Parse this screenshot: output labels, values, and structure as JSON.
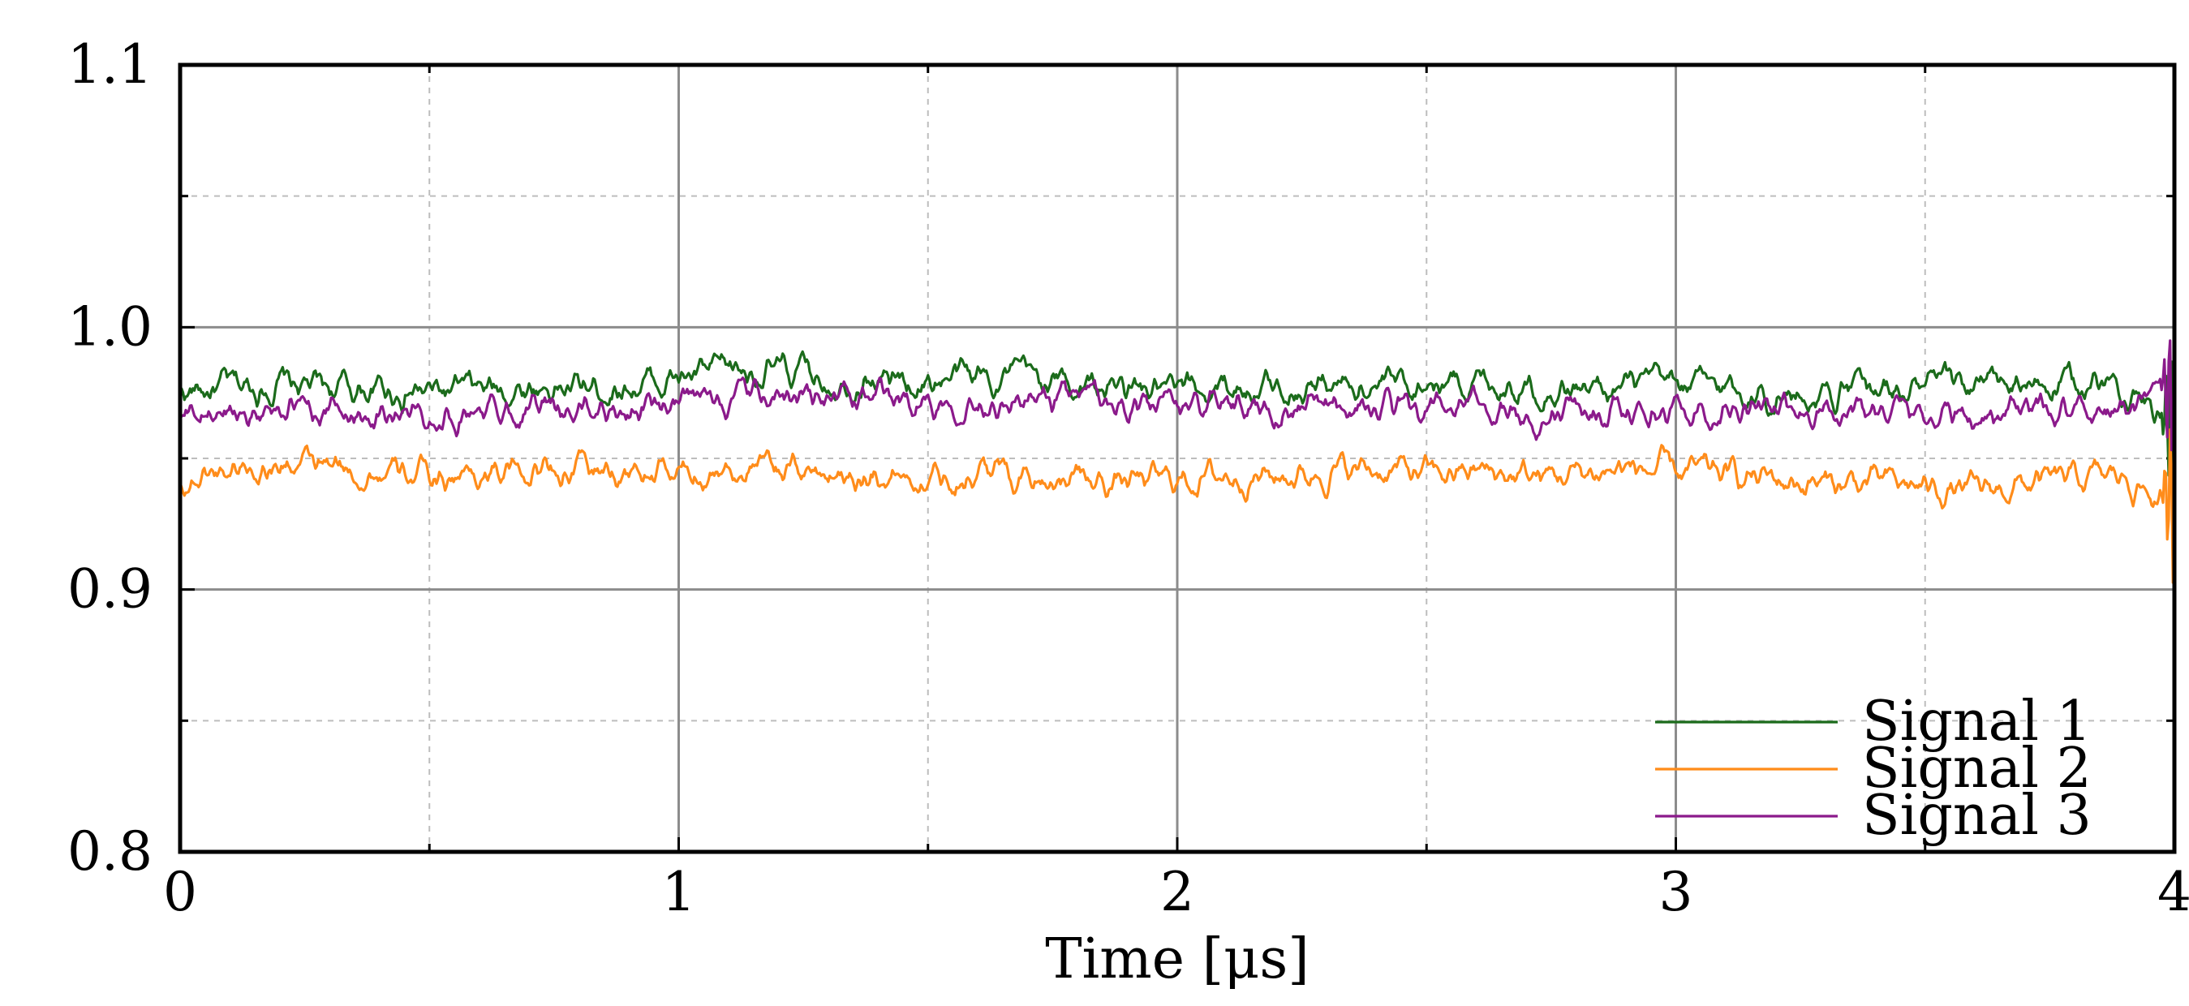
{
  "chart_data": {
    "type": "line",
    "title": "",
    "xlabel": "Time [μs]",
    "ylabel": "",
    "xlim": [
      0,
      4
    ],
    "ylim": [
      0.8,
      1.1
    ],
    "x_ticks": [
      "0",
      "1",
      "2",
      "3",
      "4"
    ],
    "y_ticks": [
      "0.8",
      "0.9",
      "1.0",
      "1.1"
    ],
    "grid": true,
    "legend_position": "bottom-right",
    "series": [
      {
        "name": "Signal 1",
        "color": "#1b6b1b",
        "x": [
          0.0,
          0.1,
          0.2,
          0.3,
          0.4,
          0.5,
          0.6,
          0.7,
          0.8,
          0.9,
          1.0,
          1.1,
          1.2,
          1.3,
          1.4,
          1.5,
          1.6,
          1.7,
          1.8,
          1.9,
          2.0,
          2.1,
          2.2,
          2.3,
          2.4,
          2.5,
          2.6,
          2.7,
          2.8,
          2.9,
          3.0,
          3.1,
          3.2,
          3.3,
          3.4,
          3.5,
          3.6,
          3.7,
          3.8,
          3.9,
          4.0
        ],
        "values": [
          0.975,
          0.977,
          0.978,
          0.977,
          0.976,
          0.975,
          0.976,
          0.977,
          0.977,
          0.978,
          0.98,
          0.984,
          0.983,
          0.981,
          0.98,
          0.979,
          0.982,
          0.981,
          0.978,
          0.976,
          0.974,
          0.978,
          0.977,
          0.979,
          0.978,
          0.979,
          0.98,
          0.978,
          0.976,
          0.977,
          0.978,
          0.977,
          0.974,
          0.975,
          0.976,
          0.977,
          0.978,
          0.977,
          0.978,
          0.979,
          0.96
        ]
      },
      {
        "name": "Signal 2",
        "color": "#ff8c1a",
        "x": [
          0.0,
          0.1,
          0.2,
          0.3,
          0.4,
          0.5,
          0.6,
          0.7,
          0.8,
          0.9,
          1.0,
          1.1,
          1.2,
          1.3,
          1.4,
          1.5,
          1.6,
          1.7,
          1.8,
          1.9,
          2.0,
          2.1,
          2.2,
          2.3,
          2.4,
          2.5,
          2.6,
          2.7,
          2.8,
          2.9,
          3.0,
          3.1,
          3.2,
          3.3,
          3.4,
          3.5,
          3.6,
          3.7,
          3.8,
          3.9,
          4.0
        ],
        "values": [
          0.94,
          0.947,
          0.948,
          0.946,
          0.944,
          0.943,
          0.944,
          0.946,
          0.946,
          0.944,
          0.944,
          0.946,
          0.946,
          0.945,
          0.944,
          0.943,
          0.945,
          0.944,
          0.942,
          0.941,
          0.942,
          0.944,
          0.943,
          0.945,
          0.946,
          0.944,
          0.945,
          0.943,
          0.944,
          0.946,
          0.945,
          0.944,
          0.942,
          0.94,
          0.941,
          0.939,
          0.937,
          0.94,
          0.942,
          0.943,
          0.93
        ]
      },
      {
        "name": "Signal 3",
        "color": "#8b1a8b",
        "x": [
          0.0,
          0.1,
          0.2,
          0.3,
          0.4,
          0.5,
          0.6,
          0.7,
          0.8,
          0.9,
          1.0,
          1.1,
          1.2,
          1.3,
          1.4,
          1.5,
          1.6,
          1.7,
          1.8,
          1.9,
          2.0,
          2.1,
          2.2,
          2.3,
          2.4,
          2.5,
          2.6,
          2.7,
          2.8,
          2.9,
          3.0,
          3.1,
          3.2,
          3.3,
          3.4,
          3.5,
          3.6,
          3.7,
          3.8,
          3.9,
          4.0
        ],
        "values": [
          0.965,
          0.968,
          0.97,
          0.969,
          0.968,
          0.967,
          0.968,
          0.97,
          0.969,
          0.969,
          0.97,
          0.973,
          0.974,
          0.973,
          0.973,
          0.972,
          0.973,
          0.972,
          0.972,
          0.971,
          0.969,
          0.971,
          0.97,
          0.971,
          0.969,
          0.968,
          0.97,
          0.965,
          0.968,
          0.969,
          0.968,
          0.97,
          0.968,
          0.969,
          0.968,
          0.967,
          0.966,
          0.968,
          0.969,
          0.968,
          0.97
        ]
      }
    ]
  }
}
